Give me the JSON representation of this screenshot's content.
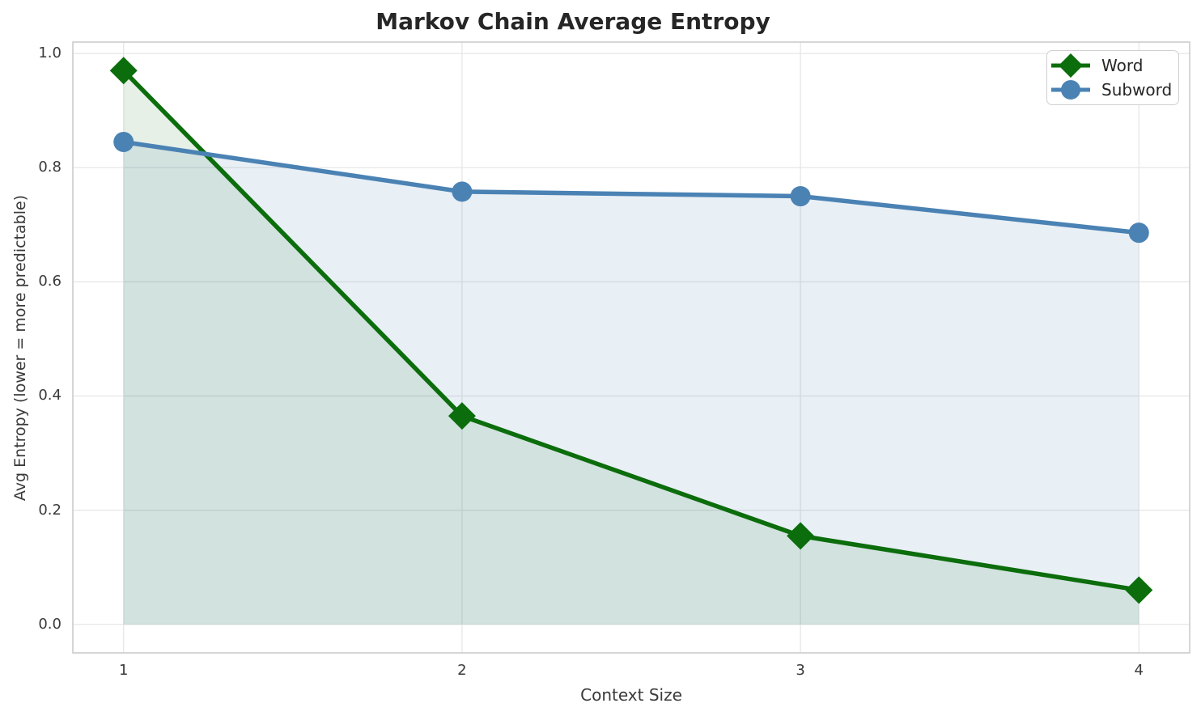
{
  "chart_data": {
    "type": "line",
    "title": "Markov Chain Average Entropy",
    "xlabel": "Context Size",
    "ylabel": "Avg Entropy (lower = more predictable)",
    "x": [
      1,
      2,
      3,
      4
    ],
    "series": [
      {
        "name": "Word",
        "marker": "diamond",
        "color": "#0b6d0b",
        "fill_color": "rgba(11,109,11,0.10)",
        "values": [
          0.97,
          0.365,
          0.155,
          0.06
        ]
      },
      {
        "name": "Subword",
        "marker": "circle",
        "color": "#4a82b4",
        "fill_color": "rgba(74,130,180,0.13)",
        "values": [
          0.845,
          0.758,
          0.75,
          0.686
        ]
      }
    ],
    "xlim": [
      0.85,
      4.15
    ],
    "ylim": [
      -0.05,
      1.02
    ],
    "xticks": [
      {
        "value": 1,
        "label": "1"
      },
      {
        "value": 2,
        "label": "2"
      },
      {
        "value": 3,
        "label": "3"
      },
      {
        "value": 4,
        "label": "4"
      }
    ],
    "yticks": [
      {
        "value": 0.0,
        "label": "0.0"
      },
      {
        "value": 0.2,
        "label": "0.2"
      },
      {
        "value": 0.4,
        "label": "0.4"
      },
      {
        "value": 0.6,
        "label": "0.6"
      },
      {
        "value": 0.8,
        "label": "0.8"
      },
      {
        "value": 1.0,
        "label": "1.0"
      }
    ],
    "fill_baseline": 0,
    "grid": true,
    "legend_position": "upper right",
    "style": {
      "grid_color": "#e6e6e6",
      "spine_color": "#cccccc",
      "tick_color": "#3a3a3a",
      "title_color": "#262626",
      "background": "#ffffff"
    }
  }
}
